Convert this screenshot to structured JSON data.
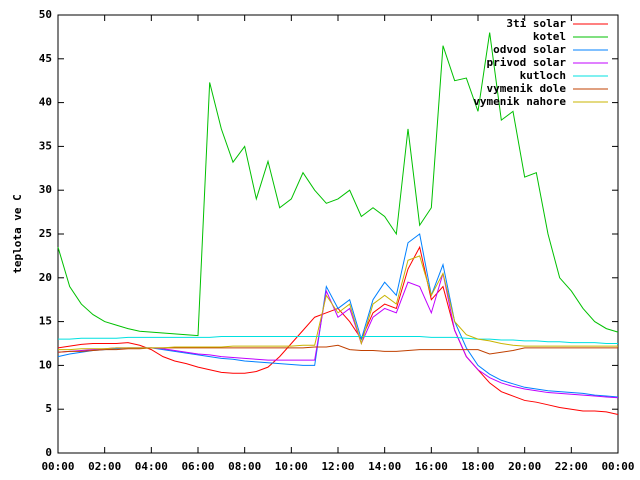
{
  "chart_data": {
    "type": "line",
    "y_label": "teplota ve C",
    "x": [
      0,
      0.5,
      1,
      1.5,
      2,
      2.5,
      3,
      3.5,
      4,
      4.5,
      5,
      5.5,
      6,
      6.5,
      7,
      7.5,
      8,
      8.5,
      9,
      9.5,
      10,
      10.5,
      11,
      11.5,
      12,
      12.5,
      13,
      13.5,
      14,
      14.5,
      15,
      15.5,
      16,
      16.5,
      17,
      17.5,
      18,
      18.5,
      19,
      19.5,
      20,
      20.5,
      21,
      21.5,
      22,
      22.5,
      23,
      23.5,
      24
    ],
    "xlim": [
      0,
      24
    ],
    "xticks": [
      {
        "value": 0,
        "label": "00:00"
      },
      {
        "value": 2,
        "label": "02:00"
      },
      {
        "value": 4,
        "label": "04:00"
      },
      {
        "value": 6,
        "label": "06:00"
      },
      {
        "value": 8,
        "label": "08:00"
      },
      {
        "value": 10,
        "label": "10:00"
      },
      {
        "value": 12,
        "label": "12:00"
      },
      {
        "value": 14,
        "label": "14:00"
      },
      {
        "value": 16,
        "label": "16:00"
      },
      {
        "value": 18,
        "label": "18:00"
      },
      {
        "value": 20,
        "label": "20:00"
      },
      {
        "value": 22,
        "label": "22:00"
      },
      {
        "value": 24,
        "label": "00:00"
      }
    ],
    "ylim": [
      0,
      50
    ],
    "yticks": [
      0,
      5,
      10,
      15,
      20,
      25,
      30,
      35,
      40,
      45,
      50
    ],
    "grid": false,
    "legend": "top-right",
    "series": [
      {
        "name": "3ti solar",
        "color": "#ff0000",
        "values": [
          12,
          12.2,
          12.4,
          12.5,
          12.5,
          12.5,
          12.6,
          12.3,
          11.8,
          11,
          10.5,
          10.2,
          9.8,
          9.5,
          9.2,
          9.1,
          9.1,
          9.3,
          9.8,
          11,
          12.5,
          14,
          15.5,
          16,
          16.5,
          15,
          13,
          16,
          17,
          16.5,
          21,
          23.5,
          17.5,
          19,
          14,
          11,
          9.5,
          8,
          7,
          6.5,
          6,
          5.8,
          5.5,
          5.2,
          5,
          4.8,
          4.8,
          4.7,
          4.4
        ]
      },
      {
        "name": "kotel",
        "color": "#00c000",
        "values": [
          23.5,
          19,
          17,
          15.8,
          15,
          14.6,
          14.2,
          13.9,
          13.8,
          13.7,
          13.6,
          13.5,
          13.4,
          42.3,
          37,
          33.2,
          35,
          29,
          33.3,
          28,
          29,
          32,
          30,
          28.5,
          29,
          30,
          27,
          28,
          27,
          25,
          37,
          26,
          28,
          46.5,
          42.5,
          42.8,
          39,
          48,
          38,
          39,
          31.5,
          32,
          25,
          20,
          18.5,
          16.5,
          15,
          14.2,
          13.8
        ]
      },
      {
        "name": "odvod solar",
        "color": "#0080ff",
        "values": [
          11,
          11.3,
          11.5,
          11.7,
          11.8,
          11.9,
          12,
          12,
          12,
          11.8,
          11.6,
          11.4,
          11.2,
          11,
          10.8,
          10.7,
          10.5,
          10.4,
          10.3,
          10.2,
          10.1,
          10,
          10,
          19,
          16.5,
          17.5,
          13,
          17.5,
          19.5,
          18,
          24,
          25,
          18,
          21.5,
          15,
          12,
          10,
          9,
          8.3,
          7.9,
          7.5,
          7.3,
          7.1,
          7,
          6.9,
          6.8,
          6.6,
          6.5,
          6.4
        ]
      },
      {
        "name": "privod solar",
        "color": "#c000ff",
        "values": [
          11.5,
          11.6,
          11.7,
          11.8,
          11.9,
          12,
          12,
          12,
          12,
          11.9,
          11.7,
          11.5,
          11.3,
          11.2,
          11,
          10.9,
          10.8,
          10.7,
          10.6,
          10.6,
          10.6,
          10.6,
          10.6,
          18.5,
          15.5,
          16.5,
          12.5,
          15.5,
          16.5,
          16,
          19.5,
          19,
          16,
          20.5,
          14,
          11,
          9.5,
          8.6,
          8,
          7.6,
          7.3,
          7.1,
          6.9,
          6.8,
          6.7,
          6.6,
          6.5,
          6.4,
          6.3
        ]
      },
      {
        "name": "kutloch",
        "color": "#00e0e0",
        "values": [
          13,
          13,
          13.1,
          13.1,
          13.1,
          13.1,
          13.2,
          13.2,
          13.2,
          13.2,
          13.2,
          13.2,
          13.2,
          13.2,
          13.3,
          13.3,
          13.3,
          13.3,
          13.3,
          13.3,
          13.3,
          13.3,
          13.3,
          13.3,
          13.3,
          13.3,
          13.3,
          13.3,
          13.3,
          13.3,
          13.3,
          13.3,
          13.2,
          13.2,
          13.2,
          13.1,
          13,
          13,
          12.9,
          12.9,
          12.8,
          12.8,
          12.7,
          12.7,
          12.6,
          12.6,
          12.6,
          12.5,
          12.5
        ]
      },
      {
        "name": "vymenik dole",
        "color": "#c04000",
        "values": [
          11.5,
          11.6,
          11.6,
          11.7,
          11.8,
          11.8,
          11.9,
          11.9,
          12,
          12,
          12,
          12,
          12,
          12,
          12,
          12,
          12,
          12,
          12,
          12,
          12,
          12,
          12.1,
          12.1,
          12.3,
          11.8,
          11.7,
          11.7,
          11.6,
          11.6,
          11.7,
          11.8,
          11.8,
          11.8,
          11.8,
          11.8,
          11.8,
          11.3,
          11.5,
          11.7,
          12,
          12,
          12,
          12,
          12,
          12,
          12,
          12,
          12
        ]
      },
      {
        "name": "vymenik nahore",
        "color": "#c8b400",
        "values": [
          11.8,
          11.8,
          11.9,
          11.9,
          11.9,
          12,
          12,
          12,
          12,
          12,
          12.1,
          12.1,
          12.1,
          12.1,
          12.1,
          12.2,
          12.2,
          12.2,
          12.2,
          12.2,
          12.2,
          12.3,
          12.3,
          18,
          16,
          17,
          12.5,
          17,
          18,
          17,
          22,
          22.5,
          18,
          20.5,
          15,
          13.5,
          13,
          12.8,
          12.5,
          12.3,
          12.2,
          12.2,
          12.2,
          12.2,
          12.2,
          12.2,
          12.2,
          12.2,
          12.2
        ]
      }
    ]
  }
}
